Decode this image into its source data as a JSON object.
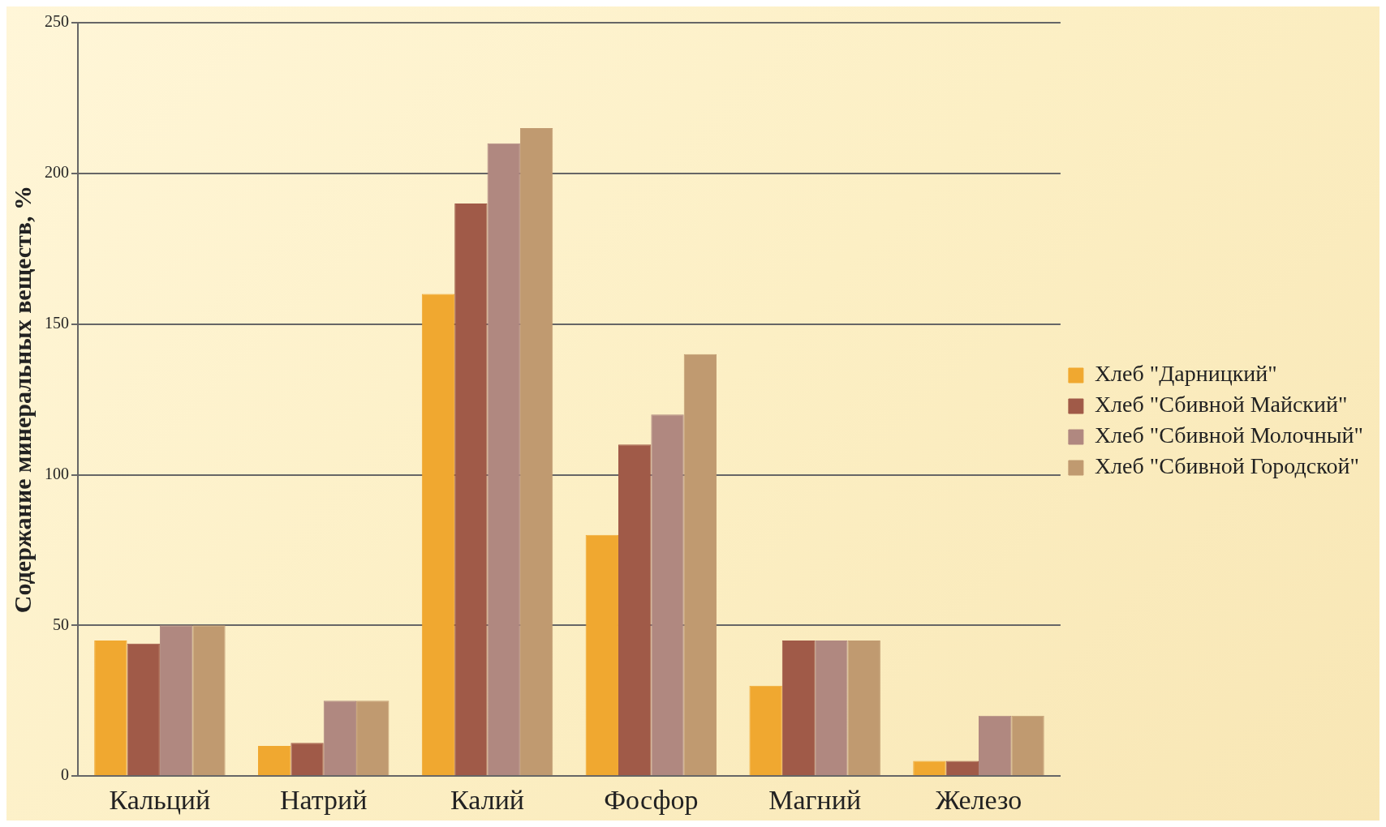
{
  "chart_data": {
    "type": "bar",
    "ylabel": "Содержание минеральных веществ, %",
    "categories": [
      "Кальций",
      "Натрий",
      "Калий",
      "Фосфор",
      "Магний",
      "Железо"
    ],
    "series": [
      {
        "name": "Хлеб \"Дарницкий\"",
        "color": "#f0a830",
        "values": [
          45,
          10,
          160,
          80,
          30,
          5
        ]
      },
      {
        "name": "Хлеб \"Сбивной Майский\"",
        "color": "#a05a48",
        "values": [
          44,
          11,
          190,
          110,
          45,
          5
        ]
      },
      {
        "name": "Хлеб \"Сбивной Молочный\"",
        "color": "#b08880",
        "values": [
          50,
          25,
          210,
          120,
          45,
          20
        ]
      },
      {
        "name": "Хлеб \"Сбивной Городской\"",
        "color": "#c09a70",
        "values": [
          50,
          25,
          215,
          140,
          45,
          20
        ]
      }
    ],
    "ylim": [
      0,
      250
    ],
    "yticks": [
      0,
      50,
      100,
      150,
      200,
      250
    ],
    "grid": "y",
    "legend": "right"
  }
}
